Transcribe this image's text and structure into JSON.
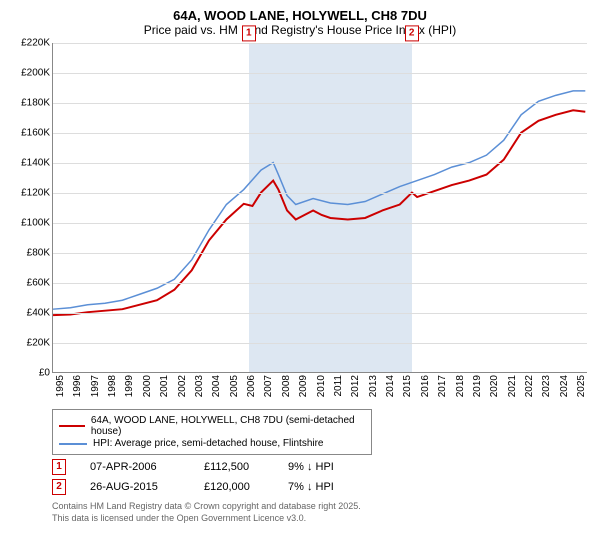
{
  "title": {
    "line1": "64A, WOOD LANE, HOLYWELL, CH8 7DU",
    "line2": "Price paid vs. HM Land Registry's House Price Index (HPI)"
  },
  "chart": {
    "type": "line",
    "background_color": "#ffffff",
    "grid_color": "#dddddd",
    "shade_color": "#dde7f2",
    "ylim": [
      0,
      220000
    ],
    "ytick_step": 20000,
    "ytick_labels": [
      "£0",
      "£20K",
      "£40K",
      "£60K",
      "£80K",
      "£100K",
      "£120K",
      "£140K",
      "£160K",
      "£180K",
      "£200K",
      "£220K"
    ],
    "xlim": [
      1995,
      2025.8
    ],
    "xticks": [
      1995,
      1996,
      1997,
      1998,
      1999,
      2000,
      2001,
      2002,
      2003,
      2004,
      2005,
      2006,
      2007,
      2008,
      2009,
      2010,
      2011,
      2012,
      2013,
      2014,
      2015,
      2016,
      2017,
      2018,
      2019,
      2020,
      2021,
      2022,
      2023,
      2024,
      2025
    ],
    "series": [
      {
        "name": "red",
        "label": "64A, WOOD LANE, HOLYWELL, CH8 7DU (semi-detached house)",
        "color": "#cc0000",
        "line_width": 2,
        "points": [
          [
            1995,
            38000
          ],
          [
            1996,
            38500
          ],
          [
            1997,
            40000
          ],
          [
            1998,
            41000
          ],
          [
            1999,
            42000
          ],
          [
            2000,
            45000
          ],
          [
            2001,
            48000
          ],
          [
            2002,
            55000
          ],
          [
            2003,
            68000
          ],
          [
            2004,
            88000
          ],
          [
            2005,
            102000
          ],
          [
            2006,
            112500
          ],
          [
            2006.5,
            111000
          ],
          [
            2007,
            120000
          ],
          [
            2007.7,
            128000
          ],
          [
            2008,
            122000
          ],
          [
            2008.5,
            108000
          ],
          [
            2009,
            102000
          ],
          [
            2009.5,
            105000
          ],
          [
            2010,
            108000
          ],
          [
            2010.5,
            105000
          ],
          [
            2011,
            103000
          ],
          [
            2012,
            102000
          ],
          [
            2013,
            103000
          ],
          [
            2014,
            108000
          ],
          [
            2015,
            112000
          ],
          [
            2015.7,
            120000
          ],
          [
            2016,
            117000
          ],
          [
            2017,
            121000
          ],
          [
            2018,
            125000
          ],
          [
            2019,
            128000
          ],
          [
            2020,
            132000
          ],
          [
            2021,
            142000
          ],
          [
            2022,
            160000
          ],
          [
            2023,
            168000
          ],
          [
            2024,
            172000
          ],
          [
            2025,
            175000
          ],
          [
            2025.7,
            174000
          ]
        ]
      },
      {
        "name": "blue",
        "label": "HPI: Average price, semi-detached house, Flintshire",
        "color": "#5b8fd6",
        "line_width": 1.5,
        "points": [
          [
            1995,
            42000
          ],
          [
            1996,
            43000
          ],
          [
            1997,
            45000
          ],
          [
            1998,
            46000
          ],
          [
            1999,
            48000
          ],
          [
            2000,
            52000
          ],
          [
            2001,
            56000
          ],
          [
            2002,
            62000
          ],
          [
            2003,
            75000
          ],
          [
            2004,
            95000
          ],
          [
            2005,
            112000
          ],
          [
            2006,
            122000
          ],
          [
            2007,
            135000
          ],
          [
            2007.7,
            140000
          ],
          [
            2008,
            132000
          ],
          [
            2008.5,
            118000
          ],
          [
            2009,
            112000
          ],
          [
            2010,
            116000
          ],
          [
            2011,
            113000
          ],
          [
            2012,
            112000
          ],
          [
            2013,
            114000
          ],
          [
            2014,
            119000
          ],
          [
            2015,
            124000
          ],
          [
            2016,
            128000
          ],
          [
            2017,
            132000
          ],
          [
            2018,
            137000
          ],
          [
            2019,
            140000
          ],
          [
            2020,
            145000
          ],
          [
            2021,
            155000
          ],
          [
            2022,
            172000
          ],
          [
            2023,
            181000
          ],
          [
            2024,
            185000
          ],
          [
            2025,
            188000
          ],
          [
            2025.7,
            188000
          ]
        ]
      }
    ],
    "shade_ranges": [
      [
        2006.27,
        2015.65
      ]
    ],
    "markers": [
      {
        "id": "1",
        "x": 2006.27,
        "y": 112500,
        "color": "#cc0000"
      },
      {
        "id": "2",
        "x": 2015.65,
        "y": 120000,
        "color": "#cc0000"
      }
    ]
  },
  "sales": [
    {
      "id": "1",
      "date": "07-APR-2006",
      "price": "£112,500",
      "delta": "9% ↓ HPI",
      "color": "#cc0000"
    },
    {
      "id": "2",
      "date": "26-AUG-2015",
      "price": "£120,000",
      "delta": "7% ↓ HPI",
      "color": "#cc0000"
    }
  ],
  "footer": {
    "line1": "Contains HM Land Registry data © Crown copyright and database right 2025.",
    "line2": "This data is licensed under the Open Government Licence v3.0."
  }
}
